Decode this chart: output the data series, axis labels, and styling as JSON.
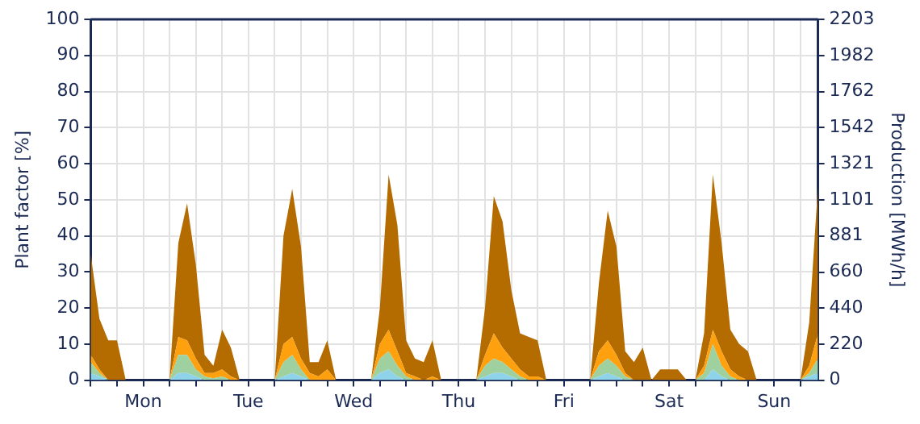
{
  "chart_data": {
    "type": "area",
    "stacked": true,
    "ylabel": "Plant factor [%]",
    "y2label": "Production [MWh/h]",
    "categories": [
      null,
      null,
      null,
      null,
      null,
      null,
      "Mon",
      null,
      null,
      null,
      null,
      null,
      null,
      null,
      null,
      null,
      null,
      null,
      "Tue",
      null,
      null,
      null,
      null,
      null,
      null,
      null,
      null,
      null,
      null,
      null,
      "Wed",
      null,
      null,
      null,
      null,
      null,
      null,
      null,
      null,
      null,
      null,
      null,
      "Thu",
      null,
      null,
      null,
      null,
      null,
      null,
      null,
      null,
      null,
      null,
      null,
      "Fri",
      null,
      null,
      null,
      null,
      null,
      null,
      null,
      null,
      null,
      null,
      null,
      "Sat",
      null,
      null,
      null,
      null,
      null,
      null,
      null,
      null,
      null,
      null,
      null,
      "Sun",
      null,
      null,
      null,
      null,
      null
    ],
    "series": [
      {
        "color": "#8fd3ea",
        "values": [
          2,
          1,
          0,
          0,
          0,
          0,
          0,
          0,
          0,
          0,
          2,
          2,
          1,
          0,
          0,
          0,
          0,
          0,
          0,
          0,
          0,
          0,
          1,
          2,
          1,
          0,
          0,
          0,
          0,
          0,
          0,
          0,
          0,
          2,
          3,
          1,
          0,
          0,
          0,
          0,
          0,
          0,
          0,
          0,
          0,
          1,
          2,
          2,
          1,
          0,
          0,
          0,
          0,
          0,
          0,
          0,
          0,
          0,
          1,
          2,
          1,
          0,
          0,
          0,
          0,
          0,
          0,
          0,
          0,
          0,
          0,
          3,
          1,
          0,
          0,
          0,
          0,
          0,
          0,
          0,
          0,
          0,
          1,
          2
        ]
      },
      {
        "color": "#9fd09f",
        "values": [
          3,
          1,
          0,
          0,
          0,
          0,
          0,
          0,
          0,
          0,
          5,
          5,
          2,
          1,
          0.5,
          1,
          0,
          0,
          0,
          0,
          0,
          0,
          4,
          5,
          2,
          0,
          0,
          0,
          0,
          0,
          0,
          0,
          0,
          4,
          5,
          3,
          1,
          0,
          0,
          0,
          0,
          0,
          0,
          0,
          0,
          3,
          4,
          3,
          2,
          1,
          0,
          0,
          0,
          0,
          0,
          0,
          0,
          0,
          3,
          4,
          3,
          1,
          0,
          0,
          0,
          0,
          0,
          0,
          0,
          0,
          2,
          7,
          3,
          1,
          0,
          0,
          0,
          0,
          0,
          0,
          0,
          0,
          1,
          4
        ]
      },
      {
        "color": "#ffa10f",
        "values": [
          2,
          1,
          0,
          0,
          0,
          0,
          0,
          0,
          0,
          0,
          5,
          4,
          3,
          1,
          1.5,
          2,
          1,
          0,
          0,
          0,
          0,
          0,
          5,
          5,
          3,
          2,
          1,
          3,
          0,
          0,
          0,
          0,
          0,
          4,
          6,
          4,
          1,
          1,
          0,
          1,
          0,
          0,
          0,
          0,
          0,
          3,
          7,
          4,
          3,
          2,
          1,
          1,
          0,
          0,
          0,
          0,
          0,
          0,
          4,
          5,
          3,
          1,
          0,
          0,
          0,
          0,
          0,
          0,
          0,
          0,
          2,
          4,
          4,
          2,
          1,
          0,
          0,
          0,
          0,
          0,
          0,
          0,
          2,
          7
        ]
      },
      {
        "color": "#b46b00",
        "values": [
          28,
          14,
          11,
          11,
          0,
          0,
          0,
          0,
          0,
          0,
          26,
          38,
          26,
          5,
          2,
          11,
          8,
          0,
          0,
          0,
          0,
          0,
          30,
          41,
          31,
          3,
          4,
          8,
          0,
          0,
          0,
          0,
          0,
          10,
          43,
          35,
          9,
          5,
          5,
          10,
          0,
          0,
          0,
          0,
          0,
          13,
          38,
          35,
          19,
          10,
          11,
          10,
          0,
          0,
          0,
          0,
          0,
          0,
          19,
          36,
          30,
          6,
          5,
          9,
          0,
          3,
          3,
          3,
          0,
          0,
          9,
          43,
          30,
          11,
          9,
          8,
          0,
          0,
          0,
          0,
          0,
          0,
          12,
          41
        ]
      }
    ],
    "ylim": [
      0,
      100
    ],
    "yticks": [
      0,
      10,
      20,
      30,
      40,
      50,
      60,
      70,
      80,
      90,
      100
    ],
    "y2lim": [
      0,
      2203
    ],
    "y2ticks": [
      0,
      220,
      440,
      660,
      881,
      1101,
      1321,
      1542,
      1762,
      1982,
      2203
    ],
    "grid": true,
    "marker": "none"
  }
}
